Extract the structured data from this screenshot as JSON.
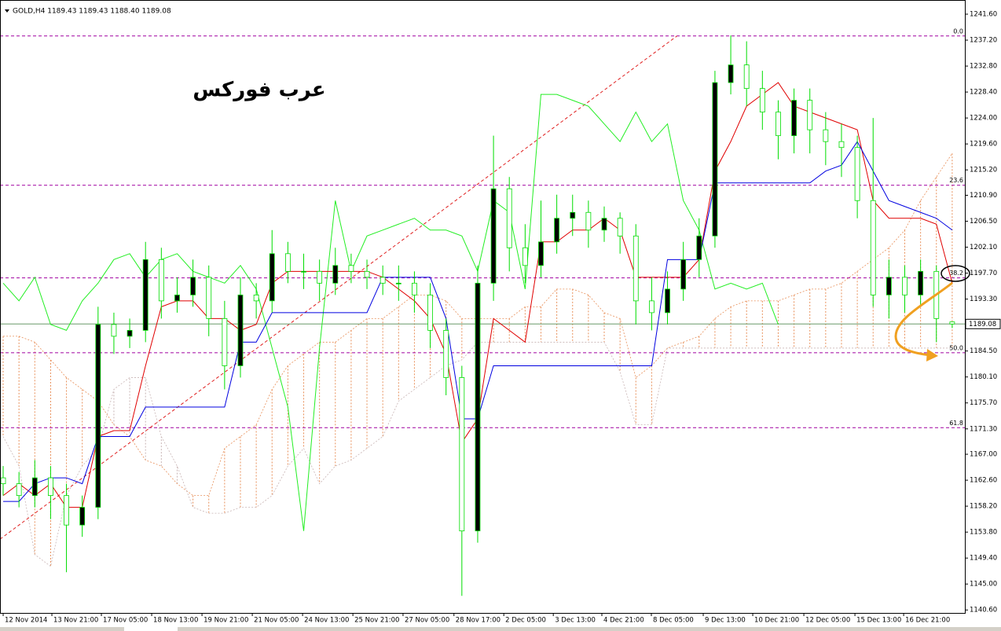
{
  "chart_data": {
    "type": "candlestick",
    "header": "GOLD,H4  1189.43 1189.43 1188.40 1189.08",
    "title": "عرب فوركس",
    "x": [
      0,
      1,
      2,
      3,
      4,
      5,
      6,
      7,
      8,
      9,
      10,
      11,
      12,
      13,
      14,
      15,
      16,
      17,
      18,
      19,
      20,
      21,
      22,
      23,
      24,
      25,
      26,
      27,
      28,
      29,
      30,
      31,
      32,
      33,
      34,
      35,
      36,
      37,
      38,
      39,
      40,
      41,
      42,
      43,
      44,
      45,
      46,
      47,
      48,
      49,
      50,
      51,
      52,
      53,
      54,
      55,
      56,
      57,
      58,
      59,
      60
    ],
    "open": [
      1163,
      1162,
      1160,
      1163,
      1160,
      1155,
      1158,
      1189,
      1187,
      1188,
      1200,
      1193,
      1194,
      1197,
      1190,
      1182,
      1194,
      1193,
      1201,
      1198,
      1198,
      1196,
      1199,
      1198,
      1197,
      1196,
      1196,
      1194,
      1188,
      1180,
      1154,
      1196,
      1212,
      1202,
      1199,
      1203,
      1207,
      1208,
      1205,
      1207,
      1204,
      1193,
      1191,
      1195,
      1200,
      1204,
      1230,
      1233,
      1229,
      1225,
      1221,
      1227,
      1222,
      1220,
      1219,
      1210,
      1194,
      1197,
      1194,
      1198,
      1189.43
    ],
    "high": [
      1165,
      1164,
      1166,
      1165,
      1162,
      1160,
      1192,
      1191,
      1190,
      1203,
      1202,
      1197,
      1200,
      1199,
      1193,
      1197,
      1196,
      1205,
      1203,
      1201,
      1200,
      1202,
      1201,
      1200,
      1199,
      1199,
      1198,
      1196,
      1190,
      1182,
      1199,
      1221,
      1214,
      1206,
      1210,
      1211,
      1211,
      1210,
      1209,
      1208,
      1206,
      1197,
      1198,
      1203,
      1207,
      1232,
      1238,
      1237,
      1232,
      1227,
      1229,
      1229,
      1225,
      1223,
      1221,
      1224,
      1200,
      1199,
      1200,
      1199,
      1189.43
    ],
    "low": [
      1160,
      1158,
      1158,
      1156,
      1147,
      1153,
      1156,
      1184,
      1185,
      1186,
      1190,
      1191,
      1192,
      1187,
      1178,
      1180,
      1190,
      1191,
      1196,
      1195,
      1193,
      1194,
      1196,
      1195,
      1194,
      1193,
      1191,
      1185,
      1177,
      1143,
      1152,
      1193,
      1198,
      1196,
      1197,
      1201,
      1204,
      1202,
      1203,
      1201,
      1189,
      1188,
      1189,
      1193,
      1197,
      1202,
      1228,
      1226,
      1222,
      1217,
      1218,
      1218,
      1216,
      1214,
      1207,
      1192,
      1190,
      1191,
      1192,
      1186,
      1188.4
    ],
    "close": [
      1162,
      1160,
      1163,
      1160,
      1155,
      1158,
      1189,
      1187,
      1188,
      1200,
      1193,
      1194,
      1197,
      1190,
      1182,
      1194,
      1193,
      1201,
      1198,
      1198,
      1196,
      1199,
      1198,
      1197,
      1196,
      1196,
      1194,
      1188,
      1180,
      1154,
      1196,
      1212,
      1202,
      1199,
      1203,
      1207,
      1208,
      1205,
      1207,
      1204,
      1193,
      1191,
      1195,
      1200,
      1204,
      1230,
      1233,
      1229,
      1225,
      1221,
      1227,
      1222,
      1220,
      1219,
      1210,
      1194,
      1197,
      1194,
      1198,
      1190,
      1189.08
    ],
    "candle_colors": {
      "up": "#000000",
      "down": "#ffffff",
      "wick": "#00dd00"
    },
    "tenkan": {
      "color": "#e00000",
      "values": [
        1160,
        1162,
        1160,
        1162,
        1158,
        1158,
        1170,
        1171,
        1171,
        1182,
        1192,
        1193,
        1193,
        1190,
        1190,
        1188,
        1189,
        1196,
        1198,
        1198,
        1198,
        1198,
        1198,
        1198,
        1197,
        1195,
        1193,
        1190,
        1184,
        1169,
        1173,
        1190,
        1188,
        1186,
        1203,
        1203,
        1205,
        1205,
        1207,
        1205,
        1197,
        1197,
        1197,
        1197,
        1200,
        1215,
        1220,
        1226,
        1228,
        1230,
        1226,
        1225,
        1224,
        1223,
        1222,
        1210,
        1207,
        1207,
        1207,
        1206,
        1196
      ]
    },
    "kijun": {
      "color": "#0000e0",
      "values": [
        1159,
        1159,
        1162,
        1163,
        1163,
        1162,
        1170,
        1170,
        1170,
        1175,
        1175,
        1175,
        1175,
        1175,
        1175,
        1186,
        1186,
        1191,
        1191,
        1191,
        1191,
        1191,
        1191,
        1191,
        1197,
        1197,
        1197,
        1197,
        1190,
        1173,
        1173,
        1182,
        1182,
        1182,
        1182,
        1182,
        1182,
        1182,
        1182,
        1182,
        1182,
        1182,
        1200,
        1200,
        1200,
        1213,
        1213,
        1213,
        1213,
        1213,
        1213,
        1213,
        1215,
        1216,
        1220,
        1215,
        1210,
        1209,
        1208,
        1207,
        1205
      ]
    },
    "chikou": {
      "color": "#22ee22",
      "values": [
        1196,
        1193,
        1197,
        1189,
        1188,
        1193,
        1196,
        1200,
        1201,
        1197,
        1200,
        1201,
        1198,
        1197,
        1196,
        1199,
        1195,
        1185,
        1175,
        1154,
        1185,
        1210,
        1198,
        1204,
        1205,
        1206,
        1207,
        1205,
        1205,
        1204,
        1198,
        1210,
        1208,
        1195,
        1228,
        1228,
        1227,
        1226,
        1223,
        1220,
        1225,
        1220,
        1223,
        1210,
        1205,
        1195,
        1196,
        1195,
        1196,
        1189,
        null,
        null,
        null,
        null,
        null,
        null,
        null,
        null,
        null,
        null,
        null
      ]
    },
    "senkou_a": {
      "color": "#e8905a",
      "values": [
        1187,
        1187,
        1186,
        1183,
        1180,
        1178,
        1176,
        1172,
        1170,
        1166,
        1165,
        1162,
        1160,
        1160,
        1168,
        1170,
        1172,
        1178,
        1182,
        1184,
        1186,
        1186,
        1188,
        1190,
        1190,
        1192,
        1194,
        1194,
        1193,
        1190,
        1190,
        1190,
        1190,
        1192,
        1192,
        1195,
        1195,
        1194,
        1191,
        1190,
        1180,
        1182,
        1185,
        1186,
        1187,
        1190,
        1192,
        1193,
        1193,
        1193,
        1194,
        1195,
        1195,
        1196,
        1198,
        1200,
        1202,
        1205,
        1210,
        1214,
        1218
      ]
    },
    "senkou_b": {
      "color": "#c8b4b4",
      "values": [
        1170,
        1165,
        1150,
        1148,
        1160,
        1165,
        1168,
        1178,
        1180,
        1180,
        1170,
        1165,
        1158,
        1157,
        1157,
        1158,
        1158,
        1160,
        1165,
        1168,
        1162,
        1165,
        1166,
        1168,
        1170,
        1176,
        1178,
        1180,
        1182,
        1183,
        1186,
        1186,
        1186,
        1186,
        1186,
        1186,
        1186,
        1186,
        1186,
        1181,
        1172,
        1172,
        1185,
        1185,
        1185,
        1185,
        1185,
        1185,
        1185,
        1185,
        1185,
        1185,
        1185,
        1185,
        1185,
        1185,
        1185,
        1185,
        1185,
        1185,
        1185
      ]
    },
    "trendline": {
      "color": "#e02020",
      "x": [
        -0.2,
        42.6
      ],
      "y": [
        1152.6,
        1237.9
      ]
    },
    "fib_color": "#a000a0",
    "fib_levels": [
      {
        "label": "0.0",
        "value": 1237.9
      },
      {
        "label": "23.6",
        "value": 1212.6
      },
      {
        "label": "38.2",
        "value": 1196.9
      },
      {
        "label": "50.0",
        "value": 1184.2
      },
      {
        "label": "61.8",
        "value": 1171.5
      }
    ],
    "price_line_color": "#6a9a6a",
    "xlim": [
      -0.2,
      60.8
    ],
    "ylim": [
      1140.1,
      1244.0
    ],
    "xticks": [
      {
        "value": 0,
        "label": "12 Nov 2014"
      },
      {
        "value": 3.08,
        "label": "13 Nov 21:00"
      },
      {
        "value": 6.21,
        "label": "17 Nov 05:00"
      },
      {
        "value": 9.39,
        "label": "18 Nov 13:00"
      },
      {
        "value": 12.57,
        "label": "19 Nov 21:00"
      },
      {
        "value": 15.75,
        "label": "21 Nov 05:00"
      },
      {
        "value": 18.93,
        "label": "24 Nov 13:00"
      },
      {
        "value": 22.11,
        "label": "25 Nov 21:00"
      },
      {
        "value": 25.28,
        "label": "27 Nov 05:00"
      },
      {
        "value": 28.5,
        "label": "28 Nov 17:00"
      },
      {
        "value": 31.65,
        "label": "2 Dec 05:00"
      },
      {
        "value": 34.78,
        "label": "3 Dec 13:00"
      },
      {
        "value": 37.85,
        "label": "4 Dec 21:00"
      },
      {
        "value": 40.98,
        "label": "8 Dec 05:00"
      },
      {
        "value": 44.26,
        "label": "9 Dec 13:00"
      },
      {
        "value": 47.39,
        "label": "10 Dec 21:00"
      },
      {
        "value": 50.62,
        "label": "12 Dec 05:00"
      },
      {
        "value": 53.85,
        "label": "15 Dec 13:00"
      },
      {
        "value": 56.93,
        "label": "16 Dec 21:00"
      }
    ],
    "yticks": [
      {
        "value": 1241.6,
        "label": "1241.60"
      },
      {
        "value": 1237.2,
        "label": "1237.20"
      },
      {
        "value": 1232.8,
        "label": "1232.80"
      },
      {
        "value": 1228.4,
        "label": "1228.40"
      },
      {
        "value": 1224,
        "label": "1224.00"
      },
      {
        "value": 1219.6,
        "label": "1219.60"
      },
      {
        "value": 1215.2,
        "label": "1215.20"
      },
      {
        "value": 1210.9,
        "label": "1210.90"
      },
      {
        "value": 1206.5,
        "label": "1206.50"
      },
      {
        "value": 1202.1,
        "label": "1202.10"
      },
      {
        "value": 1197.7,
        "label": "1197.70"
      },
      {
        "value": 1193.3,
        "label": "1193.30"
      },
      {
        "value": 1184.5,
        "label": "1184.50"
      },
      {
        "value": 1180.1,
        "label": "1180.10"
      },
      {
        "value": 1175.7,
        "label": "1175.70"
      },
      {
        "value": 1171.3,
        "label": "1171.30"
      },
      {
        "value": 1167,
        "label": "1167.00"
      },
      {
        "value": 1162.6,
        "label": "1162.60"
      },
      {
        "value": 1158.2,
        "label": "1158.20"
      },
      {
        "value": 1153.8,
        "label": "1153.80"
      },
      {
        "value": 1149.4,
        "label": "1149.40"
      },
      {
        "value": 1145,
        "label": "1145.00"
      },
      {
        "value": 1140.6,
        "label": "1140.60"
      }
    ]
  }
}
